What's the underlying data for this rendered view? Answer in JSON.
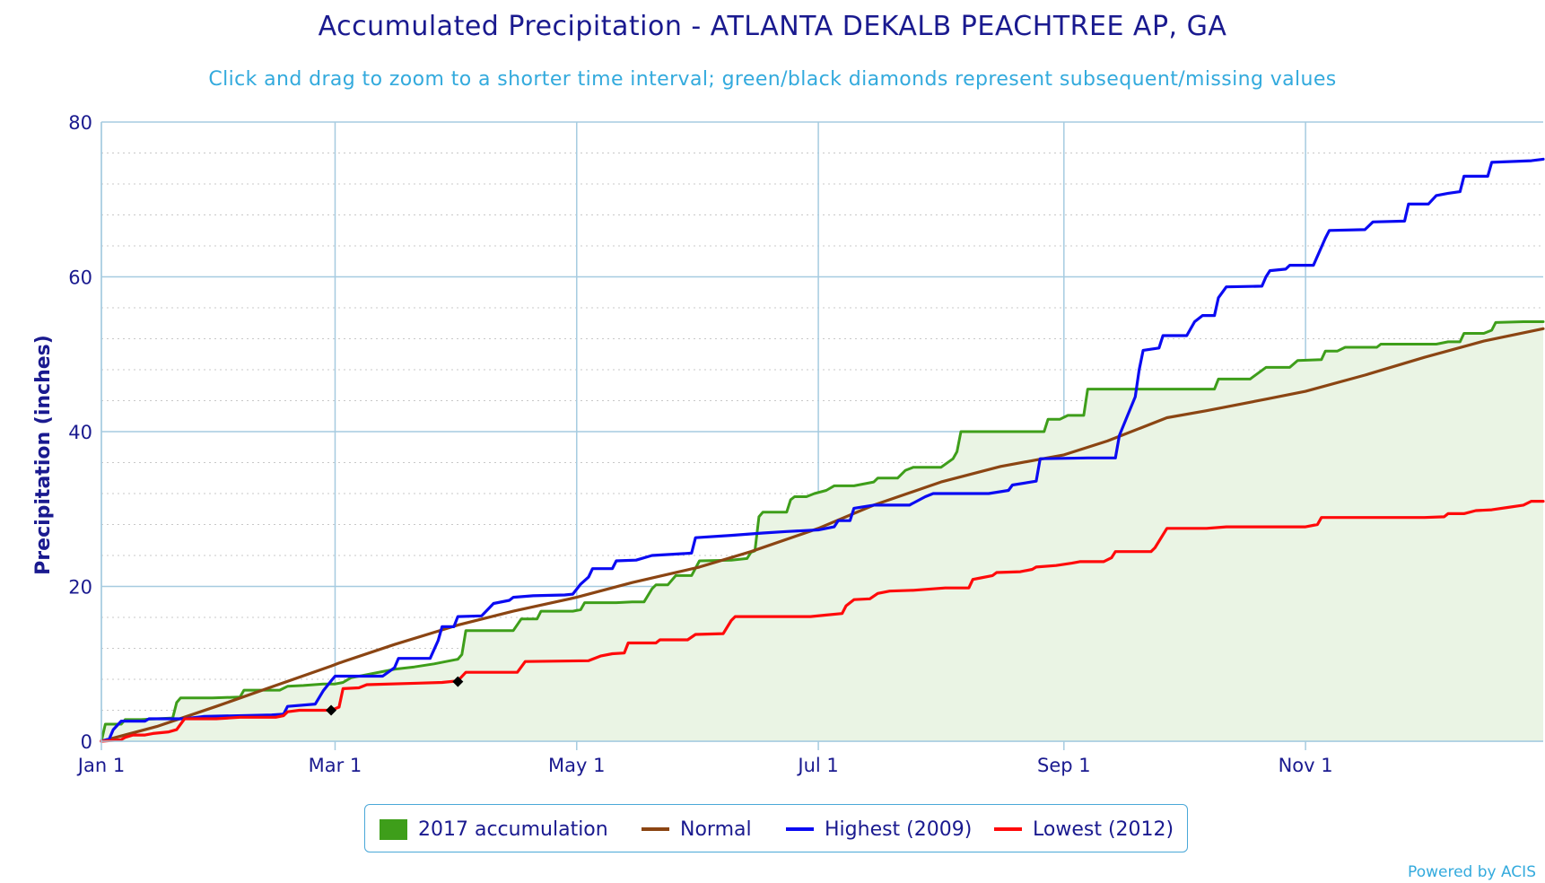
{
  "title": "Accumulated Precipitation - ATLANTA DEKALB PEACHTREE AP, GA",
  "subtitle": "Click and drag to zoom to a shorter time interval; green/black diamonds represent subsequent/missing values",
  "credit": "Powered by ACIS",
  "colors": {
    "accumulation_fill": "#eaf4e4",
    "accumulation_line": "#3e9e1a",
    "normal": "#8b4513",
    "highest": "#0b0bf2",
    "lowest": "#ff0a0a",
    "text": "#1a1a8f",
    "subtitle": "#33aadd",
    "grid": "#a6cbe0"
  },
  "chart_data": {
    "type": "area",
    "ylabel": "Precipitation (inches)",
    "xlabel": "",
    "ylim": [
      0,
      80
    ],
    "xlim_day_of_year": [
      1,
      365
    ],
    "y_ticks": [
      0,
      20,
      40,
      60,
      80
    ],
    "x_ticks": [
      {
        "label": "Jan 1",
        "day": 1
      },
      {
        "label": "Mar 1",
        "day": 60
      },
      {
        "label": "May 1",
        "day": 121
      },
      {
        "label": "Jul 1",
        "day": 182
      },
      {
        "label": "Sep 1",
        "day": 244
      },
      {
        "label": "Nov 1",
        "day": 305
      }
    ],
    "grid": true,
    "legend_position": "bottom-center",
    "series": [
      {
        "name": "2017 accumulation",
        "style": "area",
        "color": "#3e9e1a",
        "points": [
          [
            1,
            0
          ],
          [
            2,
            2.2
          ],
          [
            6,
            2.2
          ],
          [
            7,
            2.8
          ],
          [
            11,
            2.8
          ],
          [
            19,
            3.0
          ],
          [
            20,
            5.0
          ],
          [
            21,
            5.6
          ],
          [
            29,
            5.6
          ],
          [
            36,
            5.7
          ],
          [
            37,
            6.6
          ],
          [
            46,
            6.6
          ],
          [
            48,
            7.1
          ],
          [
            52,
            7.2
          ],
          [
            57,
            7.4
          ],
          [
            60,
            7.4
          ],
          [
            62,
            7.6
          ],
          [
            64,
            8.2
          ],
          [
            68,
            8.6
          ],
          [
            72,
            9.0
          ],
          [
            75,
            9.3
          ],
          [
            80,
            9.6
          ],
          [
            85,
            10.0
          ],
          [
            88,
            10.3
          ],
          [
            91,
            10.6
          ],
          [
            92,
            11.2
          ],
          [
            93,
            14.3
          ],
          [
            105,
            14.3
          ],
          [
            107,
            15.8
          ],
          [
            111,
            15.8
          ],
          [
            112,
            16.8
          ],
          [
            120,
            16.8
          ],
          [
            122,
            17.0
          ],
          [
            123,
            17.9
          ],
          [
            131,
            17.9
          ],
          [
            135,
            18.0
          ],
          [
            138,
            18.0
          ],
          [
            140,
            19.7
          ],
          [
            141,
            20.2
          ],
          [
            144,
            20.2
          ],
          [
            146,
            21.4
          ],
          [
            150,
            21.4
          ],
          [
            152,
            23.3
          ],
          [
            160,
            23.4
          ],
          [
            164,
            23.6
          ],
          [
            165,
            24.4
          ],
          [
            166,
            24.6
          ],
          [
            167,
            29.0
          ],
          [
            168,
            29.6
          ],
          [
            174,
            29.6
          ],
          [
            175,
            31.2
          ],
          [
            176,
            31.6
          ],
          [
            179,
            31.6
          ],
          [
            181,
            32.0
          ],
          [
            184,
            32.4
          ],
          [
            186,
            33.0
          ],
          [
            191,
            33.0
          ],
          [
            196,
            33.5
          ],
          [
            197,
            34.0
          ],
          [
            202,
            34.0
          ],
          [
            204,
            35.0
          ],
          [
            206,
            35.4
          ],
          [
            213,
            35.4
          ],
          [
            216,
            36.5
          ],
          [
            217,
            37.4
          ],
          [
            218,
            40.0
          ],
          [
            239,
            40.0
          ],
          [
            240,
            41.6
          ],
          [
            243,
            41.6
          ],
          [
            245,
            42.1
          ],
          [
            249,
            42.1
          ],
          [
            250,
            45.5
          ],
          [
            270,
            45.5
          ],
          [
            282,
            45.5
          ],
          [
            283,
            46.8
          ],
          [
            291,
            46.8
          ],
          [
            295,
            48.3
          ],
          [
            301,
            48.3
          ],
          [
            303,
            49.2
          ],
          [
            309,
            49.3
          ],
          [
            310,
            50.4
          ],
          [
            313,
            50.4
          ],
          [
            315,
            50.9
          ],
          [
            323,
            50.9
          ],
          [
            324,
            51.3
          ],
          [
            338,
            51.3
          ],
          [
            341,
            51.6
          ],
          [
            344,
            51.6
          ],
          [
            345,
            52.7
          ],
          [
            350,
            52.7
          ],
          [
            352,
            53.1
          ],
          [
            353,
            54.1
          ],
          [
            360,
            54.2
          ],
          [
            365,
            54.2
          ]
        ]
      },
      {
        "name": "Normal",
        "style": "line",
        "color": "#8b4513",
        "points": [
          [
            1,
            0
          ],
          [
            15,
            1.9
          ],
          [
            30,
            4.5
          ],
          [
            45,
            7.2
          ],
          [
            59,
            9.7
          ],
          [
            61,
            10.1
          ],
          [
            75,
            12.5
          ],
          [
            91,
            15.0
          ],
          [
            105,
            16.8
          ],
          [
            121,
            18.6
          ],
          [
            135,
            20.5
          ],
          [
            152,
            22.5
          ],
          [
            165,
            24.5
          ],
          [
            182,
            27.5
          ],
          [
            196,
            30.5
          ],
          [
            213,
            33.5
          ],
          [
            228,
            35.5
          ],
          [
            244,
            37.0
          ],
          [
            255,
            38.8
          ],
          [
            270,
            41.8
          ],
          [
            280,
            42.7
          ],
          [
            295,
            44.2
          ],
          [
            305,
            45.2
          ],
          [
            320,
            47.3
          ],
          [
            335,
            49.6
          ],
          [
            350,
            51.7
          ],
          [
            365,
            53.3
          ]
        ]
      },
      {
        "name": "Highest (2009)",
        "style": "line",
        "color": "#0b0bf2",
        "points": [
          [
            1,
            0
          ],
          [
            3,
            0.3
          ],
          [
            4,
            1.5
          ],
          [
            6,
            2.6
          ],
          [
            12,
            2.6
          ],
          [
            13,
            2.9
          ],
          [
            22,
            2.9
          ],
          [
            27,
            3.2
          ],
          [
            44,
            3.4
          ],
          [
            47,
            3.5
          ],
          [
            48,
            4.5
          ],
          [
            55,
            4.8
          ],
          [
            57,
            6.5
          ],
          [
            59,
            7.8
          ],
          [
            60,
            8.4
          ],
          [
            72,
            8.4
          ],
          [
            75,
            9.5
          ],
          [
            76,
            10.7
          ],
          [
            84,
            10.7
          ],
          [
            86,
            13.0
          ],
          [
            87,
            14.8
          ],
          [
            90,
            14.8
          ],
          [
            91,
            16.1
          ],
          [
            97,
            16.2
          ],
          [
            100,
            17.8
          ],
          [
            104,
            18.2
          ],
          [
            105,
            18.6
          ],
          [
            110,
            18.8
          ],
          [
            118,
            18.9
          ],
          [
            120,
            19.0
          ],
          [
            122,
            20.3
          ],
          [
            124,
            21.2
          ],
          [
            125,
            22.3
          ],
          [
            130,
            22.3
          ],
          [
            131,
            23.3
          ],
          [
            136,
            23.4
          ],
          [
            140,
            24.0
          ],
          [
            150,
            24.3
          ],
          [
            151,
            26.3
          ],
          [
            160,
            26.6
          ],
          [
            168,
            26.9
          ],
          [
            174,
            27.1
          ],
          [
            182,
            27.3
          ],
          [
            186,
            27.7
          ],
          [
            187,
            28.5
          ],
          [
            190,
            28.5
          ],
          [
            191,
            30.1
          ],
          [
            196,
            30.5
          ],
          [
            205,
            30.5
          ],
          [
            209,
            31.6
          ],
          [
            211,
            32.0
          ],
          [
            225,
            32.0
          ],
          [
            230,
            32.4
          ],
          [
            231,
            33.1
          ],
          [
            237,
            33.6
          ],
          [
            238,
            36.5
          ],
          [
            250,
            36.6
          ],
          [
            257,
            36.6
          ],
          [
            258,
            39.5
          ],
          [
            260,
            42.0
          ],
          [
            262,
            44.5
          ],
          [
            263,
            48.0
          ],
          [
            264,
            50.5
          ],
          [
            268,
            50.8
          ],
          [
            269,
            52.4
          ],
          [
            275,
            52.4
          ],
          [
            277,
            54.2
          ],
          [
            279,
            55.0
          ],
          [
            282,
            55.0
          ],
          [
            283,
            57.3
          ],
          [
            285,
            58.7
          ],
          [
            294,
            58.8
          ],
          [
            295,
            60.0
          ],
          [
            296,
            60.8
          ],
          [
            300,
            61.0
          ],
          [
            301,
            61.5
          ],
          [
            307,
            61.5
          ],
          [
            310,
            65.0
          ],
          [
            311,
            66.0
          ],
          [
            320,
            66.1
          ],
          [
            322,
            67.1
          ],
          [
            330,
            67.2
          ],
          [
            331,
            69.4
          ],
          [
            336,
            69.4
          ],
          [
            338,
            70.5
          ],
          [
            341,
            70.8
          ],
          [
            344,
            71.0
          ],
          [
            345,
            73.0
          ],
          [
            351,
            73.0
          ],
          [
            352,
            74.8
          ],
          [
            362,
            75.0
          ],
          [
            365,
            75.2
          ]
        ]
      },
      {
        "name": "Lowest (2012)",
        "style": "line",
        "color": "#ff0a0a",
        "points": [
          [
            1,
            0
          ],
          [
            6,
            0.2
          ],
          [
            7,
            0.5
          ],
          [
            9,
            0.8
          ],
          [
            12,
            0.8
          ],
          [
            14,
            1.0
          ],
          [
            18,
            1.2
          ],
          [
            20,
            1.5
          ],
          [
            22,
            2.9
          ],
          [
            28,
            2.9
          ],
          [
            30,
            2.9
          ],
          [
            36,
            3.1
          ],
          [
            45,
            3.1
          ],
          [
            47,
            3.3
          ],
          [
            48,
            3.8
          ],
          [
            51,
            4.0
          ],
          [
            59,
            4.0
          ],
          [
            61,
            4.4
          ],
          [
            62,
            6.8
          ],
          [
            66,
            6.9
          ],
          [
            68,
            7.3
          ],
          [
            81,
            7.5
          ],
          [
            87,
            7.6
          ],
          [
            89,
            7.7
          ],
          [
            91,
            7.8
          ],
          [
            93,
            8.9
          ],
          [
            106,
            8.9
          ],
          [
            108,
            10.3
          ],
          [
            124,
            10.4
          ],
          [
            127,
            11.0
          ],
          [
            130,
            11.3
          ],
          [
            133,
            11.4
          ],
          [
            134,
            12.7
          ],
          [
            141,
            12.7
          ],
          [
            142,
            13.1
          ],
          [
            149,
            13.1
          ],
          [
            151,
            13.8
          ],
          [
            158,
            13.9
          ],
          [
            160,
            15.6
          ],
          [
            161,
            16.1
          ],
          [
            170,
            16.1
          ],
          [
            180,
            16.1
          ],
          [
            184,
            16.3
          ],
          [
            188,
            16.5
          ],
          [
            189,
            17.5
          ],
          [
            191,
            18.3
          ],
          [
            195,
            18.4
          ],
          [
            197,
            19.1
          ],
          [
            200,
            19.4
          ],
          [
            206,
            19.5
          ],
          [
            214,
            19.8
          ],
          [
            220,
            19.8
          ],
          [
            221,
            20.9
          ],
          [
            223,
            21.1
          ],
          [
            226,
            21.4
          ],
          [
            227,
            21.8
          ],
          [
            233,
            21.9
          ],
          [
            236,
            22.2
          ],
          [
            237,
            22.5
          ],
          [
            242,
            22.7
          ],
          [
            246,
            23.0
          ],
          [
            248,
            23.2
          ],
          [
            254,
            23.2
          ],
          [
            256,
            23.7
          ],
          [
            257,
            24.5
          ],
          [
            266,
            24.5
          ],
          [
            267,
            25.0
          ],
          [
            270,
            27.5
          ],
          [
            280,
            27.5
          ],
          [
            285,
            27.7
          ],
          [
            305,
            27.7
          ],
          [
            308,
            28.0
          ],
          [
            309,
            28.9
          ],
          [
            335,
            28.9
          ],
          [
            340,
            29.0
          ],
          [
            341,
            29.4
          ],
          [
            345,
            29.4
          ],
          [
            348,
            29.8
          ],
          [
            352,
            29.9
          ],
          [
            356,
            30.2
          ],
          [
            360,
            30.5
          ],
          [
            362,
            31.0
          ],
          [
            365,
            31.0
          ]
        ]
      }
    ],
    "missing_value_markers": [
      [
        59,
        4.0
      ],
      [
        91,
        7.7
      ]
    ]
  }
}
